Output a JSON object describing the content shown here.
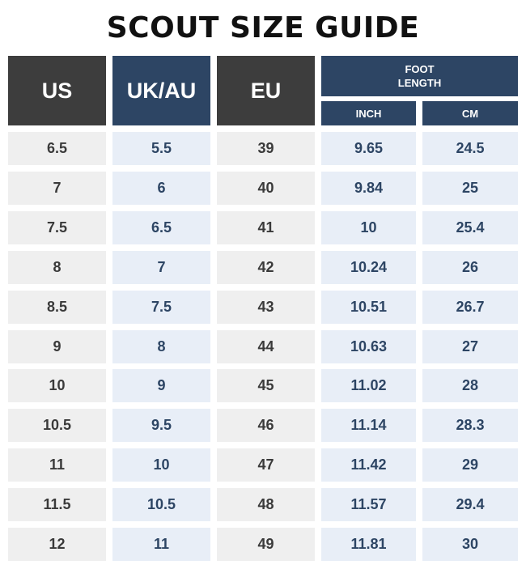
{
  "title": "SCOUT SIZE GUIDE",
  "headers": {
    "us": "US",
    "uk_au": "UK/AU",
    "eu": "EU",
    "foot_length": "FOOT LENGTH",
    "inch": "INCH",
    "cm": "CM"
  },
  "colors": {
    "dark_header": "#3d3d3d",
    "navy_header": "#2d4564",
    "gray_cell": "#efefef",
    "blue_cell": "#e8eef7"
  },
  "rows": [
    {
      "us": "6.5",
      "uk_au": "5.5",
      "eu": "39",
      "inch": "9.65",
      "cm": "24.5"
    },
    {
      "us": "7",
      "uk_au": "6",
      "eu": "40",
      "inch": "9.84",
      "cm": "25"
    },
    {
      "us": "7.5",
      "uk_au": "6.5",
      "eu": "41",
      "inch": "10",
      "cm": "25.4"
    },
    {
      "us": "8",
      "uk_au": "7",
      "eu": "42",
      "inch": "10.24",
      "cm": "26"
    },
    {
      "us": "8.5",
      "uk_au": "7.5",
      "eu": "43",
      "inch": "10.51",
      "cm": "26.7"
    },
    {
      "us": "9",
      "uk_au": "8",
      "eu": "44",
      "inch": "10.63",
      "cm": "27"
    },
    {
      "us": "10",
      "uk_au": "9",
      "eu": "45",
      "inch": "11.02",
      "cm": "28"
    },
    {
      "us": "10.5",
      "uk_au": "9.5",
      "eu": "46",
      "inch": "11.14",
      "cm": "28.3"
    },
    {
      "us": "11",
      "uk_au": "10",
      "eu": "47",
      "inch": "11.42",
      "cm": "29"
    },
    {
      "us": "11.5",
      "uk_au": "10.5",
      "eu": "48",
      "inch": "11.57",
      "cm": "29.4"
    },
    {
      "us": "12",
      "uk_au": "11",
      "eu": "49",
      "inch": "11.81",
      "cm": "30"
    }
  ]
}
